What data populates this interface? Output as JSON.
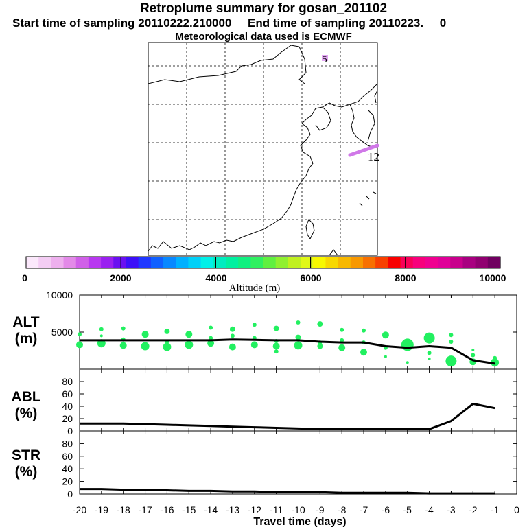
{
  "header": {
    "title": "Retroplume summary for gosan_201102",
    "start_label": "Start time of sampling 20110222.210000",
    "end_label": "End time of sampling 20110223.",
    "end_suffix": "0",
    "met_label": "Meteorological data used is ECMWF"
  },
  "map": {
    "labels": [
      {
        "text": "5"
      },
      {
        "text": "12"
      }
    ]
  },
  "colorbar": {
    "title": "Altitude (m)",
    "tick_labels": [
      "0",
      "2000",
      "4000",
      "6000",
      "8000",
      "10000"
    ],
    "range": [
      0,
      10000
    ],
    "colors": [
      "#fbe8fb",
      "#f4cdf4",
      "#eeb0ee",
      "#e38ae8",
      "#d060e8",
      "#b838f0",
      "#9a20f0",
      "#6a10f0",
      "#3c10f8",
      "#2038ff",
      "#1060ff",
      "#0888ff",
      "#00b0ff",
      "#00d0f8",
      "#00f0e8",
      "#00ecc0",
      "#00f0a0",
      "#10f080",
      "#30f060",
      "#60f040",
      "#90f030",
      "#c0f020",
      "#e0f818",
      "#f8f800",
      "#f8d800",
      "#f8b800",
      "#f89800",
      "#f87000",
      "#f84000",
      "#f80000",
      "#f80058",
      "#f8007c",
      "#f00090",
      "#e00098",
      "#c8008c",
      "#a80080",
      "#900070",
      "#700060"
    ]
  },
  "chart_data": [
    {
      "type": "line",
      "name": "ALT",
      "ylabel": "ALT\n(m)",
      "ylabel_lines": [
        "ALT",
        "(m)"
      ],
      "ylim": [
        0,
        10000
      ],
      "y_ticks": [
        "10000",
        "5000"
      ],
      "x": [
        -20,
        -19,
        -18,
        -17,
        -16,
        -15,
        -14,
        -13,
        -12,
        -11,
        -10,
        -9,
        -8,
        -7,
        -6,
        -5,
        -4,
        -3,
        -2,
        -1
      ],
      "series": [
        {
          "name": "mean altitude",
          "values": [
            3900,
            3900,
            3900,
            3900,
            3900,
            3900,
            3900,
            4000,
            3950,
            3900,
            3900,
            3700,
            3600,
            3600,
            3100,
            2900,
            3100,
            2900,
            1200,
            750
          ]
        }
      ],
      "scatter": {
        "color": "#22f060",
        "points": [
          {
            "x": -20,
            "y": 4700,
            "s": 3
          },
          {
            "x": -20,
            "y": 3300,
            "s": 5
          },
          {
            "x": -19,
            "y": 5400,
            "s": 3
          },
          {
            "x": -19,
            "y": 4500,
            "s": 2
          },
          {
            "x": -19,
            "y": 3500,
            "s": 6
          },
          {
            "x": -18,
            "y": 5500,
            "s": 3
          },
          {
            "x": -18,
            "y": 4000,
            "s": 3
          },
          {
            "x": -18,
            "y": 3200,
            "s": 5
          },
          {
            "x": -17,
            "y": 4700,
            "s": 5
          },
          {
            "x": -17,
            "y": 3100,
            "s": 6
          },
          {
            "x": -16,
            "y": 5100,
            "s": 4
          },
          {
            "x": -16,
            "y": 3700,
            "s": 3
          },
          {
            "x": -16,
            "y": 3000,
            "s": 6
          },
          {
            "x": -15,
            "y": 4700,
            "s": 5
          },
          {
            "x": -15,
            "y": 3300,
            "s": 6
          },
          {
            "x": -14,
            "y": 5600,
            "s": 3
          },
          {
            "x": -14,
            "y": 4200,
            "s": 3
          },
          {
            "x": -14,
            "y": 3500,
            "s": 5
          },
          {
            "x": -13,
            "y": 5400,
            "s": 4
          },
          {
            "x": -13,
            "y": 4500,
            "s": 3
          },
          {
            "x": -13,
            "y": 3000,
            "s": 5
          },
          {
            "x": -12,
            "y": 6000,
            "s": 3
          },
          {
            "x": -12,
            "y": 4200,
            "s": 3
          },
          {
            "x": -12,
            "y": 3300,
            "s": 5
          },
          {
            "x": -11,
            "y": 5500,
            "s": 4
          },
          {
            "x": -11,
            "y": 3800,
            "s": 3
          },
          {
            "x": -11,
            "y": 3100,
            "s": 5
          },
          {
            "x": -11,
            "y": 2400,
            "s": 3
          },
          {
            "x": -10,
            "y": 6300,
            "s": 3
          },
          {
            "x": -10,
            "y": 4300,
            "s": 4
          },
          {
            "x": -10,
            "y": 3200,
            "s": 6
          },
          {
            "x": -9,
            "y": 6100,
            "s": 4
          },
          {
            "x": -9,
            "y": 3600,
            "s": 3
          },
          {
            "x": -9,
            "y": 3100,
            "s": 4
          },
          {
            "x": -8,
            "y": 5300,
            "s": 3
          },
          {
            "x": -8,
            "y": 3900,
            "s": 3
          },
          {
            "x": -8,
            "y": 2900,
            "s": 5
          },
          {
            "x": -7,
            "y": 5200,
            "s": 3
          },
          {
            "x": -7,
            "y": 3600,
            "s": 3
          },
          {
            "x": -7,
            "y": 2300,
            "s": 5
          },
          {
            "x": -6,
            "y": 4600,
            "s": 5
          },
          {
            "x": -6,
            "y": 2900,
            "s": 3
          },
          {
            "x": -6,
            "y": 1700,
            "s": 2
          },
          {
            "x": -5,
            "y": 3300,
            "s": 9
          },
          {
            "x": -5,
            "y": 900,
            "s": 2
          },
          {
            "x": -4,
            "y": 4200,
            "s": 8
          },
          {
            "x": -4,
            "y": 2200,
            "s": 3
          },
          {
            "x": -4,
            "y": 1400,
            "s": 2
          },
          {
            "x": -3,
            "y": 4600,
            "s": 3
          },
          {
            "x": -3,
            "y": 3700,
            "s": 3
          },
          {
            "x": -3,
            "y": 1100,
            "s": 8
          },
          {
            "x": -2,
            "y": 2600,
            "s": 2
          },
          {
            "x": -2,
            "y": 1900,
            "s": 3
          },
          {
            "x": -2,
            "y": 1000,
            "s": 5
          },
          {
            "x": -1,
            "y": 900,
            "s": 6
          },
          {
            "x": -1,
            "y": 1500,
            "s": 3
          }
        ]
      }
    },
    {
      "type": "line",
      "name": "ABL",
      "ylabel": "ABL\n(%)",
      "ylabel_lines": [
        "ABL",
        "(%)"
      ],
      "ylim": [
        0,
        100
      ],
      "y_ticks": [
        "80",
        "60",
        "40",
        "20",
        "0"
      ],
      "x": [
        -20,
        -19,
        -18,
        -17,
        -16,
        -15,
        -14,
        -13,
        -12,
        -11,
        -10,
        -9,
        -8,
        -7,
        -6,
        -5,
        -4,
        -3,
        -2,
        -1
      ],
      "series": [
        {
          "name": "ABL fraction",
          "values": [
            12,
            12,
            12,
            11,
            10,
            9,
            8,
            7,
            6,
            5,
            4,
            3,
            3,
            3,
            3,
            3,
            3,
            16,
            44,
            37
          ]
        }
      ]
    },
    {
      "type": "line",
      "name": "STR",
      "ylabel": "STR\n(%)",
      "ylabel_lines": [
        "STR",
        "(%)"
      ],
      "ylim": [
        0,
        100
      ],
      "y_ticks": [
        "80",
        "60",
        "40",
        "20",
        "0"
      ],
      "x": [
        -20,
        -19,
        -18,
        -17,
        -16,
        -15,
        -14,
        -13,
        -12,
        -11,
        -10,
        -9,
        -8,
        -7,
        -6,
        -5,
        -4,
        -3,
        -2,
        -1
      ],
      "series": [
        {
          "name": "STR fraction",
          "values": [
            8,
            8,
            7,
            6,
            6,
            5,
            5,
            4,
            4,
            3,
            3,
            3,
            2,
            2,
            2,
            2,
            1,
            1,
            1,
            1
          ]
        }
      ],
      "xlabel": "Travel time (days)",
      "x_ticks": [
        "-20",
        "-19",
        "-18",
        "-17",
        "-16",
        "-15",
        "-14",
        "-13",
        "-12",
        "-11",
        "-10",
        "-9",
        "-8",
        "-7",
        "-6",
        "-5",
        "-4",
        "-3",
        "-2",
        "-1",
        "0"
      ],
      "xlim": [
        -20,
        0
      ]
    }
  ]
}
